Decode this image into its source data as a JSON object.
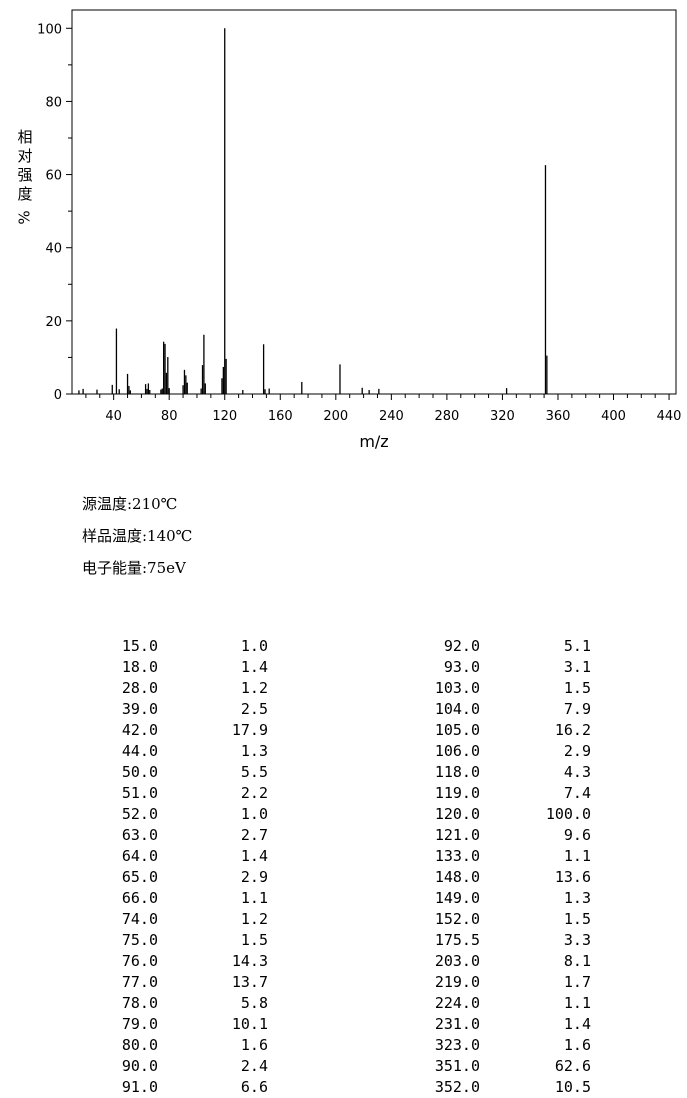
{
  "chart_data": {
    "type": "bar",
    "xlabel": "m/z",
    "ylabel_chars": [
      "相",
      "对",
      "强",
      "度"
    ],
    "ylabel_unit": "%",
    "xlim": [
      10,
      445
    ],
    "ylim": [
      0,
      105
    ],
    "xticks": [
      40,
      80,
      120,
      160,
      200,
      240,
      280,
      320,
      360,
      400,
      440
    ],
    "yticks": [
      0,
      20,
      40,
      60,
      80,
      100
    ],
    "grid": false,
    "peaks": [
      {
        "mz": 15.0,
        "intensity": 1.0
      },
      {
        "mz": 18.0,
        "intensity": 1.4
      },
      {
        "mz": 28.0,
        "intensity": 1.2
      },
      {
        "mz": 39.0,
        "intensity": 2.5
      },
      {
        "mz": 42.0,
        "intensity": 17.9
      },
      {
        "mz": 44.0,
        "intensity": 1.3
      },
      {
        "mz": 50.0,
        "intensity": 5.5
      },
      {
        "mz": 51.0,
        "intensity": 2.2
      },
      {
        "mz": 52.0,
        "intensity": 1.0
      },
      {
        "mz": 63.0,
        "intensity": 2.7
      },
      {
        "mz": 64.0,
        "intensity": 1.4
      },
      {
        "mz": 65.0,
        "intensity": 2.9
      },
      {
        "mz": 66.0,
        "intensity": 1.1
      },
      {
        "mz": 74.0,
        "intensity": 1.2
      },
      {
        "mz": 75.0,
        "intensity": 1.5
      },
      {
        "mz": 76.0,
        "intensity": 14.3
      },
      {
        "mz": 77.0,
        "intensity": 13.7
      },
      {
        "mz": 78.0,
        "intensity": 5.8
      },
      {
        "mz": 79.0,
        "intensity": 10.1
      },
      {
        "mz": 80.0,
        "intensity": 1.6
      },
      {
        "mz": 90.0,
        "intensity": 2.4
      },
      {
        "mz": 91.0,
        "intensity": 6.6
      },
      {
        "mz": 92.0,
        "intensity": 5.1
      },
      {
        "mz": 93.0,
        "intensity": 3.1
      },
      {
        "mz": 103.0,
        "intensity": 1.5
      },
      {
        "mz": 104.0,
        "intensity": 7.9
      },
      {
        "mz": 105.0,
        "intensity": 16.2
      },
      {
        "mz": 106.0,
        "intensity": 2.9
      },
      {
        "mz": 118.0,
        "intensity": 4.3
      },
      {
        "mz": 119.0,
        "intensity": 7.4
      },
      {
        "mz": 120.0,
        "intensity": 100.0
      },
      {
        "mz": 121.0,
        "intensity": 9.6
      },
      {
        "mz": 133.0,
        "intensity": 1.1
      },
      {
        "mz": 148.0,
        "intensity": 13.6
      },
      {
        "mz": 149.0,
        "intensity": 1.3
      },
      {
        "mz": 152.0,
        "intensity": 1.5
      },
      {
        "mz": 175.5,
        "intensity": 3.3
      },
      {
        "mz": 203.0,
        "intensity": 8.1
      },
      {
        "mz": 219.0,
        "intensity": 1.7
      },
      {
        "mz": 224.0,
        "intensity": 1.1
      },
      {
        "mz": 231.0,
        "intensity": 1.4
      },
      {
        "mz": 323.0,
        "intensity": 1.6
      },
      {
        "mz": 351.0,
        "intensity": 62.6
      },
      {
        "mz": 352.0,
        "intensity": 10.5
      }
    ]
  },
  "conditions": {
    "source_temp": "源温度:210℃",
    "sample_temp": "样品温度:140℃",
    "electron_energy": "电子能量:75eV"
  },
  "peak_table": {
    "left": [
      [
        "15.0",
        "1.0"
      ],
      [
        "18.0",
        "1.4"
      ],
      [
        "28.0",
        "1.2"
      ],
      [
        "39.0",
        "2.5"
      ],
      [
        "42.0",
        "17.9"
      ],
      [
        "44.0",
        "1.3"
      ],
      [
        "50.0",
        "5.5"
      ],
      [
        "51.0",
        "2.2"
      ],
      [
        "52.0",
        "1.0"
      ],
      [
        "63.0",
        "2.7"
      ],
      [
        "64.0",
        "1.4"
      ],
      [
        "65.0",
        "2.9"
      ],
      [
        "66.0",
        "1.1"
      ],
      [
        "74.0",
        "1.2"
      ],
      [
        "75.0",
        "1.5"
      ],
      [
        "76.0",
        "14.3"
      ],
      [
        "77.0",
        "13.7"
      ],
      [
        "78.0",
        "5.8"
      ],
      [
        "79.0",
        "10.1"
      ],
      [
        "80.0",
        "1.6"
      ],
      [
        "90.0",
        "2.4"
      ],
      [
        "91.0",
        "6.6"
      ]
    ],
    "right": [
      [
        "92.0",
        "5.1"
      ],
      [
        "93.0",
        "3.1"
      ],
      [
        "103.0",
        "1.5"
      ],
      [
        "104.0",
        "7.9"
      ],
      [
        "105.0",
        "16.2"
      ],
      [
        "106.0",
        "2.9"
      ],
      [
        "118.0",
        "4.3"
      ],
      [
        "119.0",
        "7.4"
      ],
      [
        "120.0",
        "100.0"
      ],
      [
        "121.0",
        "9.6"
      ],
      [
        "133.0",
        "1.1"
      ],
      [
        "148.0",
        "13.6"
      ],
      [
        "149.0",
        "1.3"
      ],
      [
        "152.0",
        "1.5"
      ],
      [
        "175.5",
        "3.3"
      ],
      [
        "203.0",
        "8.1"
      ],
      [
        "219.0",
        "1.7"
      ],
      [
        "224.0",
        "1.1"
      ],
      [
        "231.0",
        "1.4"
      ],
      [
        "323.0",
        "1.6"
      ],
      [
        "351.0",
        "62.6"
      ],
      [
        "352.0",
        "10.5"
      ]
    ]
  }
}
